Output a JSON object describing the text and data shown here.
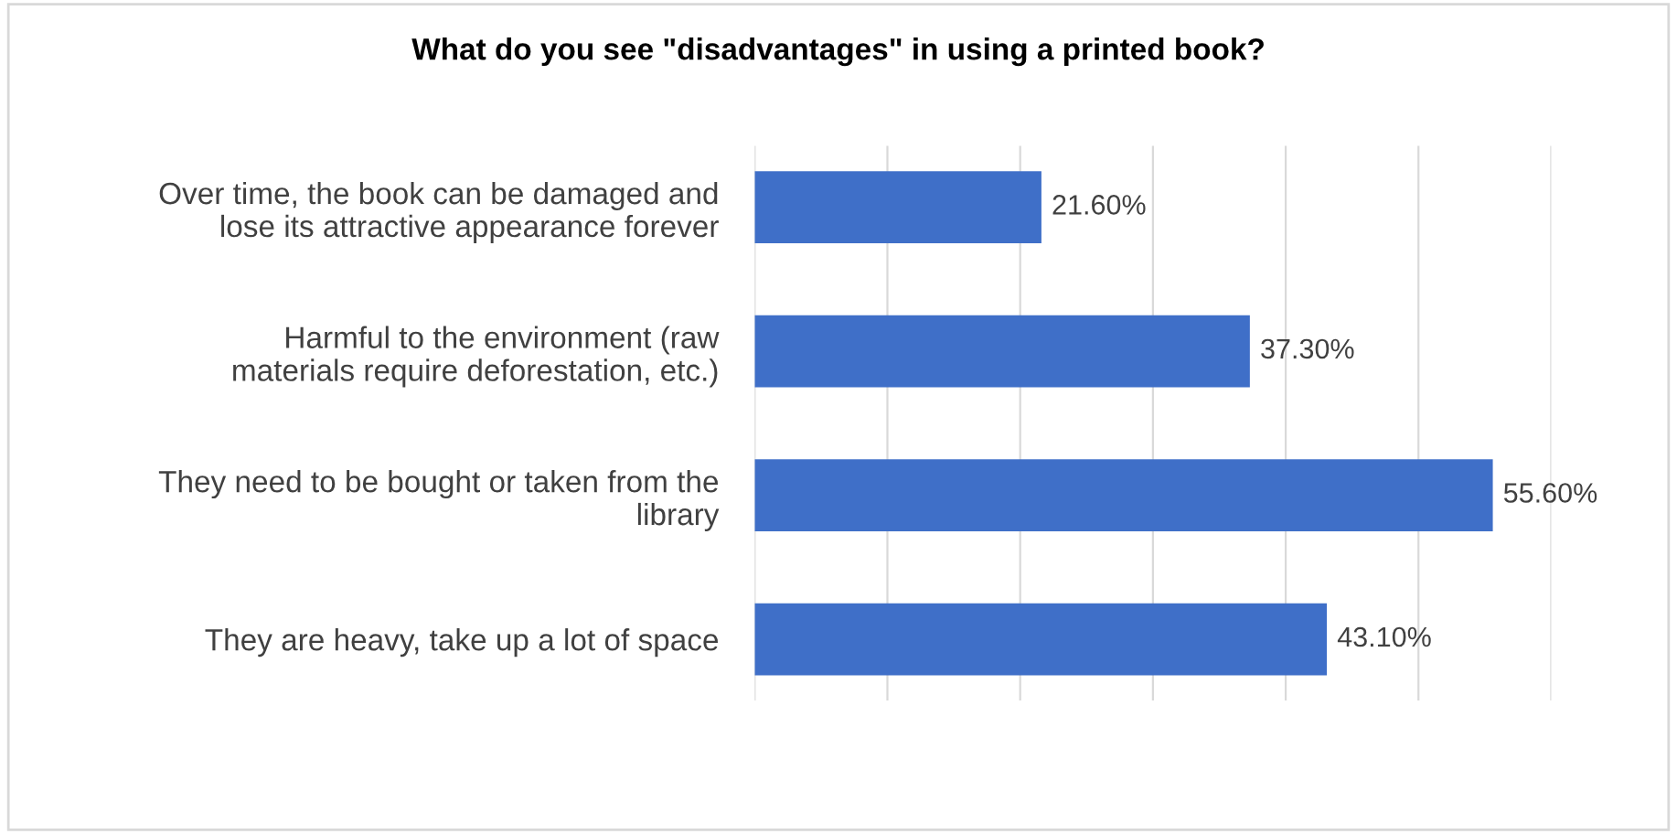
{
  "chart_data": {
    "type": "bar",
    "orientation": "horizontal",
    "title": "What do you see \"disadvantages\" in using a printed book?",
    "categories": [
      "Over time, the book can be damaged and\nlose its attractive appearance forever",
      "Harmful to the environment (raw\nmaterials require deforestation, etc.)",
      "They need to be bought or taken from the\nlibrary",
      "They are heavy, take up a lot of space"
    ],
    "values": [
      21.6,
      37.3,
      55.6,
      43.1
    ],
    "value_labels": [
      "21.60%",
      "37.30%",
      "55.60%",
      "43.10%"
    ],
    "color": "#3f6fc8",
    "xlim": [
      0,
      60
    ],
    "xticks": [
      {
        "value": 0,
        "label": null
      },
      {
        "value": 10,
        "label": null
      },
      {
        "value": 20,
        "label": null
      },
      {
        "value": 30,
        "label": null
      },
      {
        "value": 40,
        "label": null
      },
      {
        "value": 50,
        "label": null
      },
      {
        "value": 60,
        "label": null
      }
    ],
    "grid": "x",
    "tick_labels": "y",
    "legend": false
  }
}
